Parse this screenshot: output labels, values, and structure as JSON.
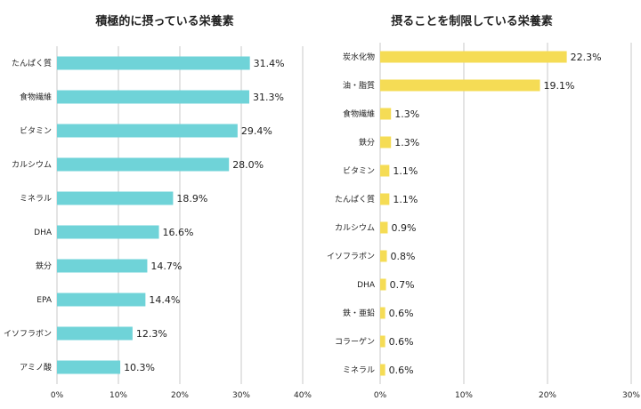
{
  "chart_data": [
    {
      "type": "bar",
      "orientation": "horizontal",
      "title": "積極的に摂っている栄養素",
      "categories": [
        "たんぱく質",
        "食物繊維",
        "ビタミン",
        "カルシウム",
        "ミネラル",
        "DHA",
        "鉄分",
        "EPA",
        "イソフラボン",
        "アミノ酸"
      ],
      "values": [
        31.4,
        31.3,
        29.4,
        28.0,
        18.9,
        16.6,
        14.7,
        14.4,
        12.3,
        10.3
      ],
      "data_labels": [
        "31.4%",
        "31.3%",
        "29.4%",
        "28.0%",
        "18.9%",
        "16.6%",
        "14.7%",
        "14.4%",
        "12.3%",
        "10.3%"
      ],
      "xlim": [
        0,
        40
      ],
      "x_ticks": [
        0,
        10,
        20,
        30,
        40
      ],
      "x_tick_labels": [
        "0%",
        "10%",
        "20%",
        "30%",
        "40%"
      ],
      "grid": true,
      "color": "#6fd3d8"
    },
    {
      "type": "bar",
      "orientation": "horizontal",
      "title": "摂ることを制限している栄養素",
      "categories": [
        "炭水化物",
        "油・脂質",
        "食物繊維",
        "鉄分",
        "ビタミン",
        "たんぱく質",
        "カルシウム",
        "イソフラボン",
        "DHA",
        "鉄・亜鉛",
        "コラーゲン",
        "ミネラル"
      ],
      "values": [
        22.3,
        19.1,
        1.3,
        1.3,
        1.1,
        1.1,
        0.9,
        0.8,
        0.7,
        0.6,
        0.6,
        0.6
      ],
      "data_labels": [
        "22.3%",
        "19.1%",
        "1.3%",
        "1.3%",
        "1.1%",
        "1.1%",
        "0.9%",
        "0.8%",
        "0.7%",
        "0.6%",
        "0.6%",
        "0.6%"
      ],
      "xlim": [
        0,
        30
      ],
      "x_ticks": [
        0,
        10,
        20,
        30
      ],
      "x_tick_labels": [
        "0%",
        "10%",
        "20%",
        "30%"
      ],
      "grid": true,
      "color": "#f5dc55"
    }
  ]
}
